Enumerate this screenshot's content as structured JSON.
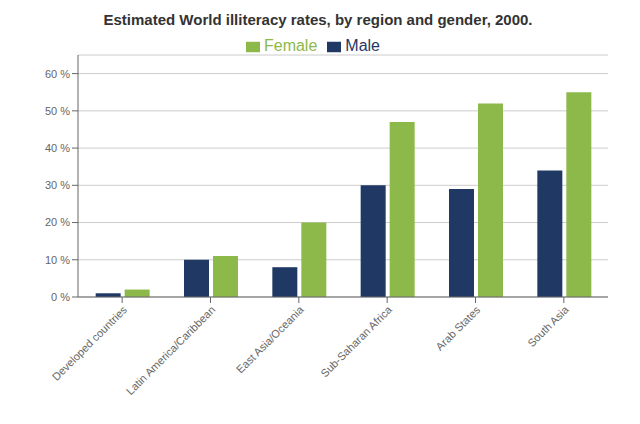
{
  "chart_data": {
    "type": "bar",
    "title": "Estimated World illiteracy rates, by region and gender, 2000.",
    "categories": [
      "Developed countries",
      "Latin America/Caribbean",
      "East Asia/Oceania",
      "Sub-Saharan Africa",
      "Arab States",
      "South Asia"
    ],
    "series": [
      {
        "name": "Male",
        "color": "#1F3864",
        "values": [
          1,
          10,
          8,
          30,
          29,
          34
        ]
      },
      {
        "name": "Female",
        "color": "#8DB84A",
        "values": [
          2,
          11,
          20,
          47,
          52,
          55
        ]
      }
    ],
    "ylim": [
      0,
      65
    ],
    "yticks": [
      {
        "value": 0,
        "label": "0 %"
      },
      {
        "value": 10,
        "label": "10 %"
      },
      {
        "value": 20,
        "label": "20 %"
      },
      {
        "value": 30,
        "label": "30 %"
      },
      {
        "value": 40,
        "label": "40 %"
      },
      {
        "value": 50,
        "label": "50 %"
      },
      {
        "value": 60,
        "label": "60 %"
      }
    ],
    "grid": true,
    "legend": "top"
  }
}
